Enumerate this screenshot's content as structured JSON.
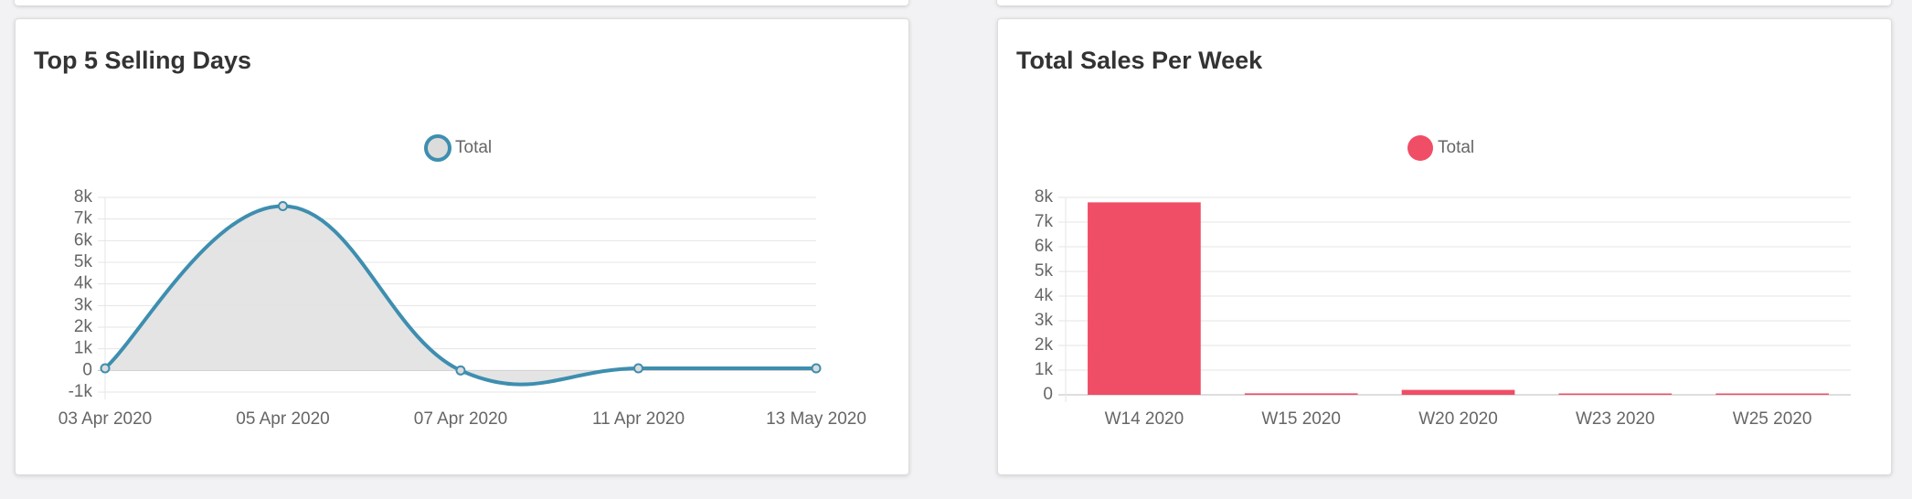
{
  "panels": [
    {
      "title": "Top 5 Selling Days"
    },
    {
      "title": "Total Sales Per Week"
    }
  ],
  "chart_data": [
    {
      "type": "area",
      "title": "Top 5 Selling Days",
      "categories": [
        "03 Apr 2020",
        "05 Apr 2020",
        "07 Apr 2020",
        "11 Apr 2020",
        "13 May 2020"
      ],
      "series": [
        {
          "name": "Total",
          "values": [
            100,
            7600,
            0,
            100,
            100
          ]
        }
      ],
      "y_ticks": [
        "8k",
        "7k",
        "6k",
        "5k",
        "4k",
        "3k",
        "2k",
        "1k",
        "0",
        "-1k"
      ],
      "ylim": [
        -1000,
        8000
      ],
      "grid": true,
      "legend": "top-center",
      "colors": {
        "line": "#3e8eaf",
        "fill": "#e3e3e3",
        "marker_fill": "#dcdcdc"
      }
    },
    {
      "type": "bar",
      "title": "Total Sales Per Week",
      "categories": [
        "W14 2020",
        "W15 2020",
        "W20 2020",
        "W23 2020",
        "W25 2020"
      ],
      "series": [
        {
          "name": "Total",
          "values": [
            7800,
            60,
            200,
            20,
            10
          ]
        }
      ],
      "y_ticks": [
        "8k",
        "7k",
        "6k",
        "5k",
        "4k",
        "3k",
        "2k",
        "1k",
        "0"
      ],
      "ylim": [
        0,
        8000
      ],
      "grid": true,
      "legend": "top-center",
      "colors": {
        "bar": "#f04e66"
      }
    }
  ]
}
